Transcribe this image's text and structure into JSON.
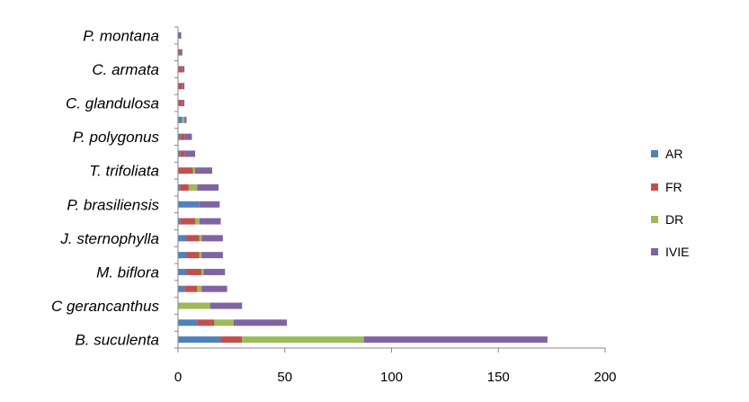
{
  "chart_data": {
    "type": "bar",
    "orientation": "horizontal",
    "stacked": true,
    "title": "",
    "xlabel": "",
    "ylabel": "",
    "xlim": [
      0,
      200
    ],
    "x_ticks": [
      0,
      50,
      100,
      150,
      200
    ],
    "grid": false,
    "legend_position": "right",
    "categories": [
      "P. montana",
      "",
      "C. armata",
      "",
      "C. glandulosa",
      "",
      "P. polygonus",
      "",
      "T. trifoliata",
      "",
      "P. brasiliensis",
      "",
      "J. sternophylla",
      "",
      "M. biflora",
      "",
      "C gerancanthus",
      "",
      "B. suculenta"
    ],
    "series": [
      {
        "name": "AR",
        "color": "#4F81BD",
        "values": [
          0,
          0,
          0,
          0,
          0,
          2,
          1,
          1,
          0,
          1,
          10,
          1,
          4,
          4,
          4,
          3,
          0,
          9,
          20
        ]
      },
      {
        "name": "FR",
        "color": "#C0504D",
        "values": [
          0,
          1,
          2,
          2,
          2,
          0,
          2,
          2,
          7,
          4,
          0,
          7,
          6,
          6,
          7,
          6,
          0,
          8,
          10
        ]
      },
      {
        "name": "DR",
        "color": "#9BBB59",
        "values": [
          0,
          0,
          0,
          0,
          0,
          1,
          0,
          0,
          1,
          4,
          0,
          2,
          1,
          1,
          1,
          2,
          15,
          9,
          57
        ]
      },
      {
        "name": "IVIE",
        "color": "#8064A2",
        "values": [
          1.5,
          1,
          1,
          1,
          1,
          1,
          3.5,
          5,
          8,
          10,
          9.5,
          10,
          10,
          10,
          10,
          12,
          15,
          25,
          86
        ]
      }
    ]
  }
}
